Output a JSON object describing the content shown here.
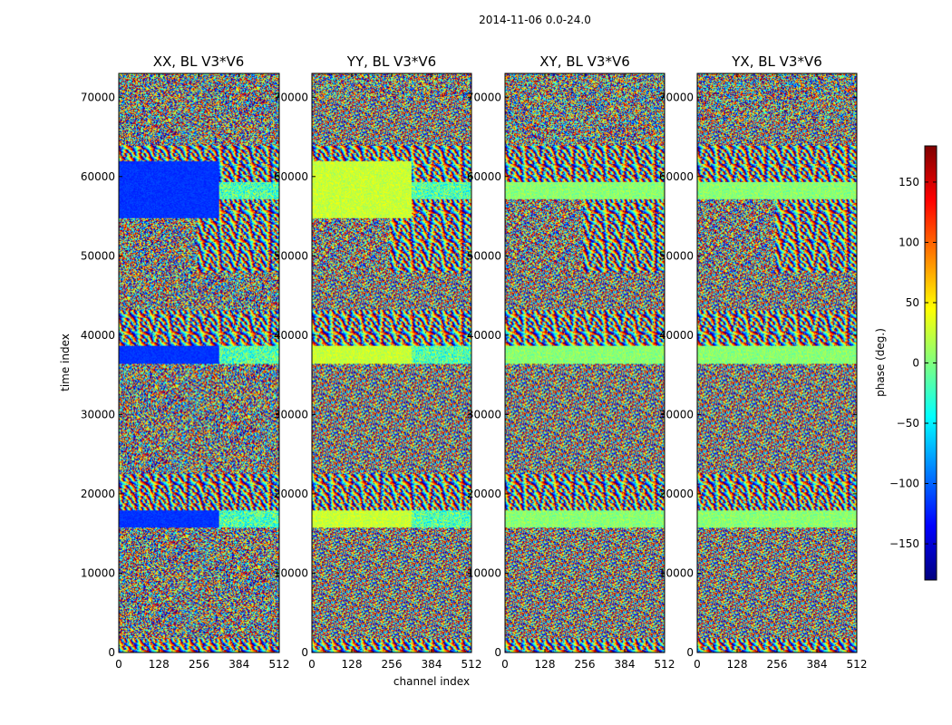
{
  "chart_data": {
    "type": "heatmap",
    "suptitle": "2014-11-06 0.0-24.0",
    "xlabel": "channel index",
    "ylabel": "time index",
    "xlim": [
      0,
      512
    ],
    "ylim": [
      0,
      73000
    ],
    "x_ticks": [
      0,
      128,
      256,
      384,
      512
    ],
    "y_ticks": [
      0,
      10000,
      20000,
      30000,
      40000,
      50000,
      60000,
      70000
    ],
    "panels": [
      {
        "title": "XX, BL V3*V6",
        "quantity": "phase"
      },
      {
        "title": "YY, BL V3*V6",
        "quantity": "phase"
      },
      {
        "title": "XY, BL V3*V6",
        "quantity": "phase"
      },
      {
        "title": "YX, BL V3*V6",
        "quantity": "phase"
      }
    ],
    "colorbar": {
      "label": "phase (deg.)",
      "range": [
        -180,
        180
      ],
      "ticks": [
        -150,
        -100,
        -50,
        0,
        50,
        100,
        150
      ],
      "tick_labels": [
        "−150",
        "−100",
        "−50",
        "0",
        "50",
        "100",
        "150"
      ],
      "colormap": "jet",
      "colormap_stops": [
        "#00007f",
        "#0000ff",
        "#007fff",
        "#00ffff",
        "#7fff7f",
        "#ffff00",
        "#ff7f00",
        "#ff0000",
        "#7f0000"
      ]
    }
  }
}
